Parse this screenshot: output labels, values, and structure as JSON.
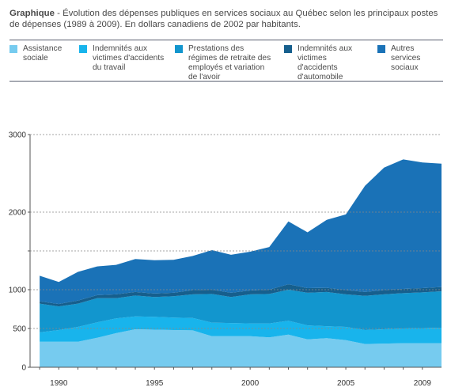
{
  "header": {
    "lead": "Graphique",
    "text": " - Évolution des dépenses publiques en services sociaux au Québec selon les principaux postes de dépenses (1989 à 2009). En dollars canadiens de 2002 par habitants."
  },
  "colors": {
    "assistance": "#76cbef",
    "indem_travail": "#18b4ec",
    "retraite": "#1296ce",
    "indem_auto": "#165f8d",
    "autres": "#1a72b7",
    "grid": "#888888",
    "axis": "#555555",
    "rule": "#5a6070"
  },
  "legend": [
    {
      "label": "Assistance sociale",
      "color_key": "assistance"
    },
    {
      "label": "Indemnités aux victimes d'accidents du travail",
      "color_key": "indem_travail"
    },
    {
      "label": "Prestations des régimes de retraite des employés et variation de l'avoir",
      "color_key": "retraite"
    },
    {
      "label": "Indemnités aux victimes d'accidents d'automobile",
      "color_key": "indem_auto"
    },
    {
      "label": "Autres services sociaux",
      "color_key": "autres"
    }
  ],
  "chart_data": {
    "type": "area",
    "stacked": true,
    "title": "",
    "xlabel": "",
    "ylabel": "",
    "x": [
      1989,
      1990,
      1991,
      1992,
      1993,
      1994,
      1995,
      1996,
      1997,
      1998,
      1999,
      2000,
      2001,
      2002,
      2003,
      2004,
      2005,
      2006,
      2007,
      2008,
      2009,
      2010
    ],
    "xlim": [
      1988.5,
      2010
    ],
    "ylim": [
      0,
      3000
    ],
    "y_ticks": [
      0,
      500,
      1000,
      1500,
      2000,
      3000
    ],
    "y_tick_labels": [
      "0",
      "500",
      "1000",
      "",
      "2000",
      "3000"
    ],
    "x_ticks": [
      1990,
      1995,
      2000,
      2005,
      2009
    ],
    "x_tick_labels": [
      "1990",
      "1995",
      "2000",
      "2005",
      "2009"
    ],
    "grid": true,
    "series": [
      {
        "name": "Assistance sociale",
        "color_key": "assistance",
        "values": [
          330,
          330,
          330,
          380,
          440,
          490,
          485,
          480,
          475,
          400,
          400,
          400,
          385,
          420,
          360,
          375,
          350,
          300,
          305,
          310,
          310,
          310
        ]
      },
      {
        "name": "Indemnités aux victimes d'accidents du travail",
        "color_key": "indem_travail",
        "values": [
          120,
          150,
          190,
          200,
          190,
          165,
          165,
          160,
          160,
          175,
          170,
          165,
          180,
          180,
          180,
          155,
          170,
          180,
          185,
          190,
          195,
          200
        ]
      },
      {
        "name": "Prestations des régimes de retraite des employés et variation de l'avoir",
        "color_key": "retraite",
        "values": [
          370,
          305,
          300,
          310,
          260,
          270,
          255,
          275,
          305,
          370,
          335,
          375,
          380,
          400,
          420,
          440,
          420,
          440,
          450,
          455,
          460,
          470
        ]
      },
      {
        "name": "Indemnités aux victimes d'accidents d'automobile",
        "color_key": "indem_auto",
        "values": [
          30,
          30,
          40,
          40,
          50,
          45,
          45,
          45,
          55,
          55,
          55,
          50,
          55,
          70,
          60,
          55,
          55,
          50,
          55,
          55,
          55,
          55
        ]
      },
      {
        "name": "Autres services sociaux",
        "color_key": "autres",
        "values": [
          330,
          285,
          370,
          370,
          380,
          425,
          430,
          425,
          440,
          510,
          490,
          500,
          550,
          810,
          720,
          875,
          975,
          1370,
          1580,
          1670,
          1620,
          1590
        ]
      }
    ]
  }
}
